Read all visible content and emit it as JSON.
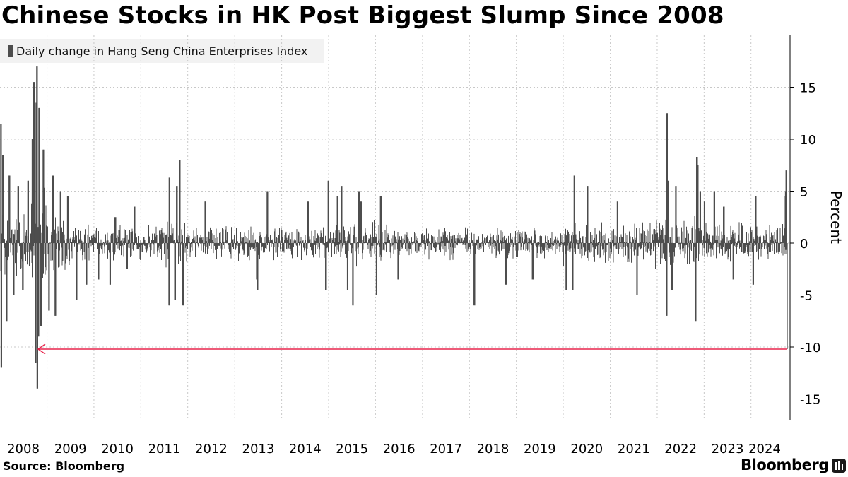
{
  "title": "Chinese Stocks in HK Post Biggest Slump Since 2008",
  "legend": {
    "label": "Daily change in Hang Seng China Enterprises Index"
  },
  "source": "Source: Bloomberg",
  "brand": "Bloomberg",
  "brand_icon": "bloomberg-terminal-icon",
  "colors": {
    "bars": "#4d4d4d",
    "annotation": "#e8254d",
    "grid": "#c8c8c8",
    "legend_bg": "#f2f2f2"
  },
  "chart_data": {
    "type": "bar",
    "ylabel": "Percent",
    "ylim": [
      -17,
      20
    ],
    "yticks": [
      15,
      10,
      5,
      0,
      -5,
      -10,
      -15
    ],
    "ytick_labels": [
      "15",
      "10",
      "5",
      "0",
      "-5",
      "-10",
      "-15"
    ],
    "x_tick_labels": [
      "2008",
      "2009",
      "2010",
      "2011",
      "2012",
      "2013",
      "2014",
      "2015",
      "2016",
      "2017",
      "2018",
      "2019",
      "2020",
      "2021",
      "2022",
      "2023",
      "2024"
    ],
    "grid": "dotted",
    "legend_position": "top-left",
    "x_range": [
      "2008-01-01",
      "2024-10-31"
    ],
    "series": [
      {
        "name": "Daily change in Hang Seng China Enterprises Index",
        "spikes": [
          {
            "date": "2008-01-07",
            "value": 11.5
          },
          {
            "date": "2008-01-10",
            "value": -12
          },
          {
            "date": "2008-01-22",
            "value": 8.5
          },
          {
            "date": "2008-02-20",
            "value": -7.5
          },
          {
            "date": "2008-03-12",
            "value": 6.5
          },
          {
            "date": "2008-04-15",
            "value": -5
          },
          {
            "date": "2008-05-20",
            "value": 5.5
          },
          {
            "date": "2008-06-25",
            "value": -4.5
          },
          {
            "date": "2008-08-05",
            "value": 6
          },
          {
            "date": "2008-09-08",
            "value": 10
          },
          {
            "date": "2008-09-18",
            "value": 15.5
          },
          {
            "date": "2008-10-02",
            "value": -11.5
          },
          {
            "date": "2008-10-08",
            "value": 13.5
          },
          {
            "date": "2008-10-13",
            "value": 17
          },
          {
            "date": "2008-10-16",
            "value": -14
          },
          {
            "date": "2008-10-24",
            "value": -9
          },
          {
            "date": "2008-10-30",
            "value": 13
          },
          {
            "date": "2008-11-13",
            "value": -8
          },
          {
            "date": "2008-12-02",
            "value": 9
          },
          {
            "date": "2009-01-15",
            "value": -6.5
          },
          {
            "date": "2009-02-15",
            "value": 6.5
          },
          {
            "date": "2009-03-05",
            "value": -7
          },
          {
            "date": "2009-04-15",
            "value": 5
          },
          {
            "date": "2009-06-10",
            "value": 4.5
          },
          {
            "date": "2009-08-17",
            "value": -5.5
          },
          {
            "date": "2009-11-02",
            "value": -4
          },
          {
            "date": "2010-02-04",
            "value": -3.5
          },
          {
            "date": "2010-05-06",
            "value": -4
          },
          {
            "date": "2010-06-14",
            "value": 2.5
          },
          {
            "date": "2010-09-13",
            "value": -2.5
          },
          {
            "date": "2010-11-12",
            "value": 3.5
          },
          {
            "date": "2011-08-08",
            "value": -6
          },
          {
            "date": "2011-08-10",
            "value": 6.3
          },
          {
            "date": "2011-09-22",
            "value": -5.5
          },
          {
            "date": "2011-10-06",
            "value": 5.5
          },
          {
            "date": "2011-10-28",
            "value": 8
          },
          {
            "date": "2011-11-22",
            "value": -6
          },
          {
            "date": "2012-05-15",
            "value": 4
          },
          {
            "date": "2013-06-20",
            "value": -3.5
          },
          {
            "date": "2013-06-24",
            "value": -4.5
          },
          {
            "date": "2013-09-10",
            "value": 5
          },
          {
            "date": "2014-07-22",
            "value": 4
          },
          {
            "date": "2014-12-09",
            "value": -4.5
          },
          {
            "date": "2014-12-29",
            "value": 6
          },
          {
            "date": "2015-03-10",
            "value": 4.5
          },
          {
            "date": "2015-04-09",
            "value": 5.5
          },
          {
            "date": "2015-05-28",
            "value": -4.5
          },
          {
            "date": "2015-07-08",
            "value": -6
          },
          {
            "date": "2015-08-24",
            "value": 5
          },
          {
            "date": "2015-09-07",
            "value": 4
          },
          {
            "date": "2016-01-08",
            "value": -5
          },
          {
            "date": "2016-02-09",
            "value": 4.5
          },
          {
            "date": "2016-06-24",
            "value": -3.5
          },
          {
            "date": "2018-02-06",
            "value": -6
          },
          {
            "date": "2018-10-11",
            "value": -4
          },
          {
            "date": "2019-05-06",
            "value": -3.5
          },
          {
            "date": "2020-01-23",
            "value": -4.5
          },
          {
            "date": "2020-03-12",
            "value": -4.5
          },
          {
            "date": "2020-03-26",
            "value": 6.5
          },
          {
            "date": "2020-07-06",
            "value": 5.5
          },
          {
            "date": "2021-02-25",
            "value": 4
          },
          {
            "date": "2021-07-27",
            "value": -5
          },
          {
            "date": "2022-03-14",
            "value": -7
          },
          {
            "date": "2022-03-16",
            "value": 12.5
          },
          {
            "date": "2022-03-21",
            "value": 6
          },
          {
            "date": "2022-04-25",
            "value": -4.5
          },
          {
            "date": "2022-05-25",
            "value": 5.5
          },
          {
            "date": "2022-10-24",
            "value": -7.5
          },
          {
            "date": "2022-11-04",
            "value": 8.3
          },
          {
            "date": "2022-11-11",
            "value": 7.5
          },
          {
            "date": "2022-12-01",
            "value": 5
          },
          {
            "date": "2023-01-03",
            "value": 4
          },
          {
            "date": "2023-03-20",
            "value": 5
          },
          {
            "date": "2023-06-01",
            "value": 3.5
          },
          {
            "date": "2023-08-15",
            "value": -3.5
          },
          {
            "date": "2024-01-17",
            "value": -4
          },
          {
            "date": "2024-02-05",
            "value": 4.5
          },
          {
            "date": "2024-09-24",
            "value": 4.5
          },
          {
            "date": "2024-09-26",
            "value": 5
          },
          {
            "date": "2024-09-30",
            "value": 7
          },
          {
            "date": "2024-10-04",
            "value": 6
          },
          {
            "date": "2024-10-08",
            "value": -10.2
          }
        ]
      }
    ],
    "annotations": [
      {
        "type": "arrow",
        "from_date": "2024-10-08",
        "to_date": "2008-10-24",
        "value": -10.2,
        "color": "#e8254d"
      }
    ]
  }
}
